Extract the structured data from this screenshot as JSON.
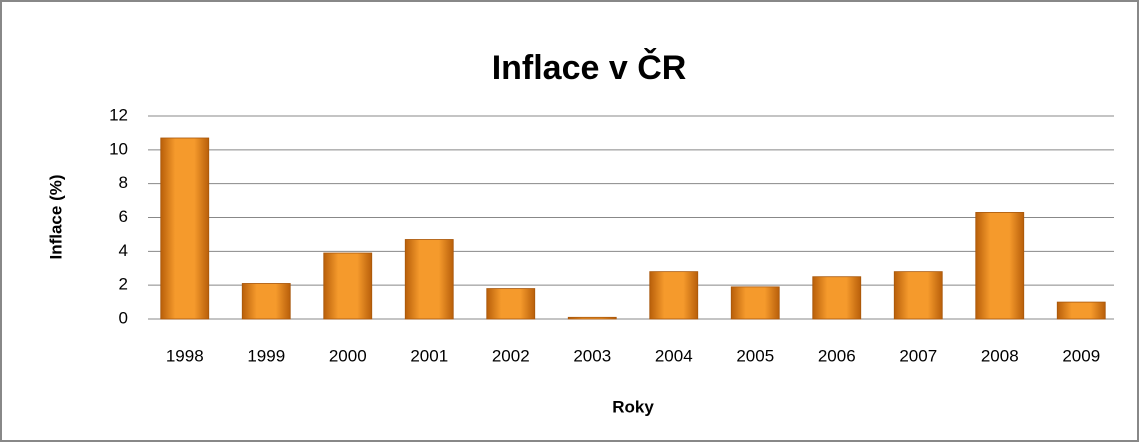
{
  "chart_data": {
    "type": "bar",
    "title": "Inflace v ČR",
    "x_label": "Roky",
    "y_label": "Inflace (%)",
    "categories": [
      "1998",
      "1999",
      "2000",
      "2001",
      "2002",
      "2003",
      "2004",
      "2005",
      "2006",
      "2007",
      "2008",
      "2009"
    ],
    "values": [
      10.7,
      2.1,
      3.9,
      4.7,
      1.8,
      0.1,
      2.8,
      1.9,
      2.5,
      2.8,
      6.3,
      1.0
    ],
    "color": "#f59a2c",
    "ylim": [
      0,
      12
    ],
    "yticks": [
      0,
      2,
      4,
      6,
      8,
      10,
      12
    ],
    "grid": true
  }
}
